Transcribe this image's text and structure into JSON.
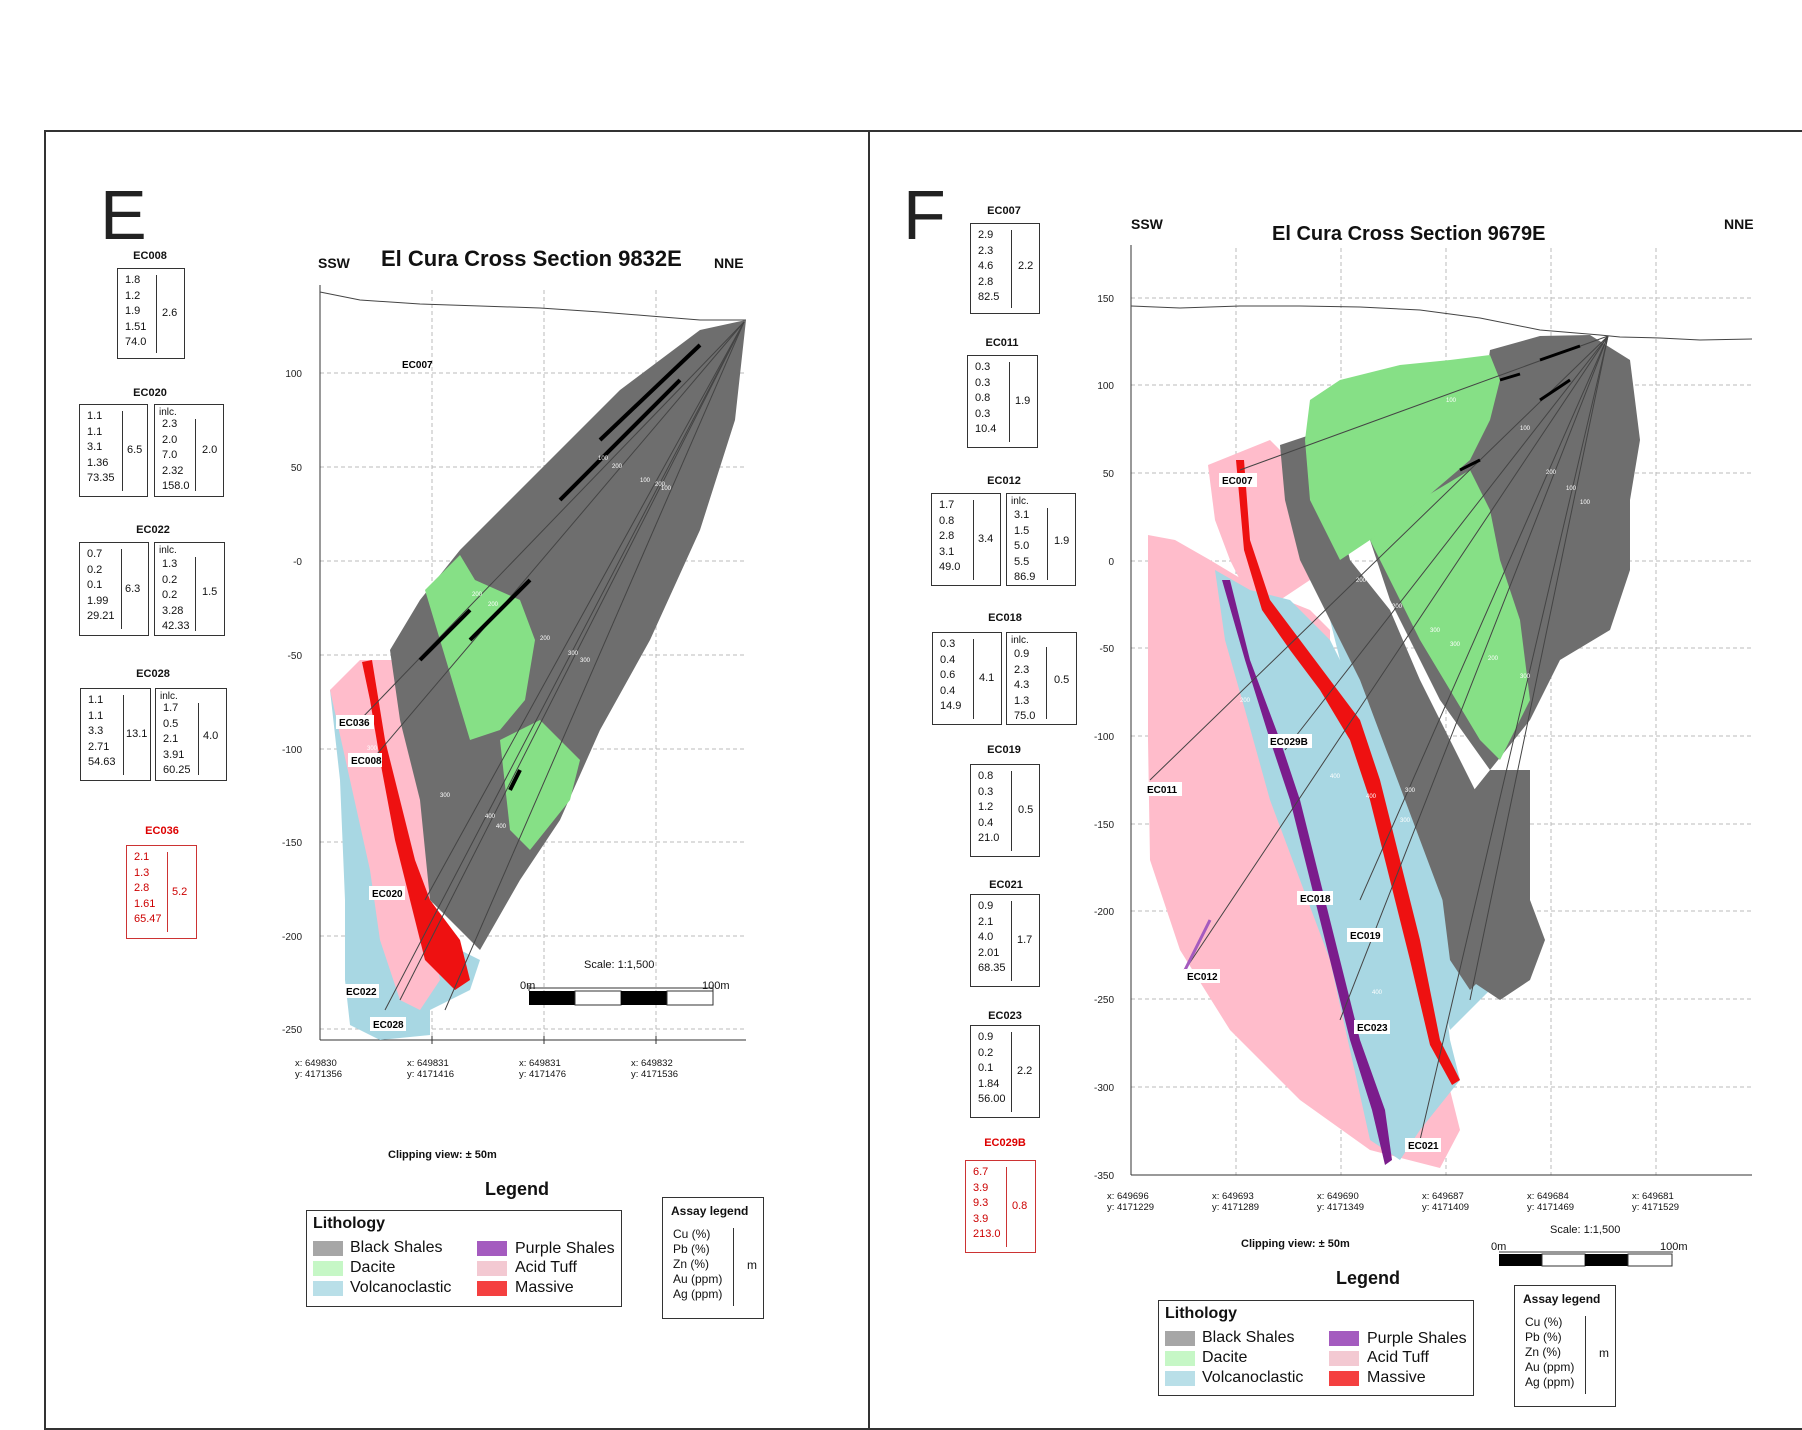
{
  "panels": {
    "E": {
      "letter": "E",
      "title": "El Cura Cross Section 9832E",
      "dir_left": "SSW",
      "dir_right": "NNE",
      "y_ticks": [
        "100",
        "50",
        "-0",
        "-50",
        "-100",
        "-150",
        "-200",
        "-250"
      ],
      "coords": [
        {
          "x": "x: 649830",
          "y": "y: 4171356"
        },
        {
          "x": "x: 649831",
          "y": "y: 4171416"
        },
        {
          "x": "x: 649831",
          "y": "y: 4171476"
        },
        {
          "x": "x: 649832",
          "y": "y: 4171536"
        }
      ],
      "hole_labels": [
        "EC007",
        "EC036",
        "EC008",
        "EC020",
        "EC022",
        "EC028"
      ],
      "depth_marks": [
        "100",
        "200",
        "100",
        "200",
        "100",
        "200",
        "200",
        "200",
        "300",
        "300",
        "300",
        "400",
        "400",
        "300"
      ],
      "scale": {
        "label": "Scale: 1:1,500",
        "start": "0m",
        "end": "100m"
      },
      "clipping": "Clipping view: ± 50m",
      "assays": [
        {
          "name": "EC008",
          "values": [
            "1.8",
            "1.2",
            "1.9",
            "1.51",
            "74.0"
          ],
          "length": "2.6"
        },
        {
          "name": "EC020",
          "values": [
            "1.1",
            "1.1",
            "3.1",
            "1.36",
            "73.35"
          ],
          "length": "6.5",
          "incl_label": "inlc.",
          "incl_values": [
            "2.3",
            "2.0",
            "7.0",
            "2.32",
            "158.0"
          ],
          "incl_length": "2.0"
        },
        {
          "name": "EC022",
          "values": [
            "0.7",
            "0.2",
            "0.1",
            "1.99",
            "29.21"
          ],
          "length": "6.3",
          "incl_label": "inlc.",
          "incl_values": [
            "1.3",
            "0.2",
            "0.2",
            "3.28",
            "42.33"
          ],
          "incl_length": "1.5"
        },
        {
          "name": "EC028",
          "values": [
            "1.1",
            "1.1",
            "3.3",
            "2.71",
            "54.63"
          ],
          "length": "13.1",
          "incl_label": "inlc.",
          "incl_values": [
            "1.7",
            "0.5",
            "2.1",
            "3.91",
            "60.25"
          ],
          "incl_length": "4.0"
        },
        {
          "name": "EC036",
          "values": [
            "2.1",
            "1.3",
            "2.8",
            "1.61",
            "65.47"
          ],
          "length": "5.2"
        }
      ]
    },
    "F": {
      "letter": "F",
      "title": "El Cura Cross Section 9679E",
      "dir_left": "SSW",
      "dir_right": "NNE",
      "y_ticks": [
        "150",
        "100",
        "50",
        "0",
        "-50",
        "-100",
        "-150",
        "-200",
        "-250",
        "-300",
        "-350"
      ],
      "coords": [
        {
          "x": "x: 649696",
          "y": "y: 4171229"
        },
        {
          "x": "x: 649693",
          "y": "y: 4171289"
        },
        {
          "x": "x: 649690",
          "y": "y: 4171349"
        },
        {
          "x": "x: 649687",
          "y": "y: 4171409"
        },
        {
          "x": "x: 649684",
          "y": "y: 4171469"
        },
        {
          "x": "x: 649681",
          "y": "y: 4171529"
        }
      ],
      "hole_labels": [
        "EC007",
        "EC011",
        "EC029B",
        "EC018",
        "EC019",
        "EC012",
        "EC023",
        "EC021"
      ],
      "depth_marks": [
        "100",
        "100",
        "200",
        "200",
        "300",
        "300",
        "200",
        "300",
        "400",
        "400",
        "300",
        "200",
        "100",
        "100",
        "200",
        "300",
        "400"
      ],
      "scale": {
        "label": "Scale: 1:1,500",
        "start": "0m",
        "end": "100m"
      },
      "clipping": "Clipping view: ± 50m",
      "assays": [
        {
          "name": "EC007",
          "values": [
            "2.9",
            "2.3",
            "4.6",
            "2.8",
            "82.5"
          ],
          "length": "2.2"
        },
        {
          "name": "EC011",
          "values": [
            "0.3",
            "0.3",
            "0.8",
            "0.3",
            "10.4"
          ],
          "length": "1.9"
        },
        {
          "name": "EC012",
          "values": [
            "1.7",
            "0.8",
            "2.8",
            "3.1",
            "49.0"
          ],
          "length": "3.4",
          "incl_label": "inlc.",
          "incl_values": [
            "3.1",
            "1.5",
            "5.0",
            "5.5",
            "86.9"
          ],
          "incl_length": "1.9"
        },
        {
          "name": "EC018",
          "values": [
            "0.3",
            "0.4",
            "0.6",
            "0.4",
            "14.9"
          ],
          "length": "4.1",
          "incl_label": "inlc.",
          "incl_values": [
            "0.9",
            "2.3",
            "4.3",
            "1.3",
            "75.0"
          ],
          "incl_length": "0.5"
        },
        {
          "name": "EC019",
          "values": [
            "0.8",
            "0.3",
            "1.2",
            "0.4",
            "21.0"
          ],
          "length": "0.5"
        },
        {
          "name": "EC021",
          "values": [
            "0.9",
            "2.1",
            "4.0",
            "2.01",
            "68.35"
          ],
          "length": "1.7"
        },
        {
          "name": "EC023",
          "values": [
            "0.9",
            "0.2",
            "0.1",
            "1.84",
            "56.00"
          ],
          "length": "2.2"
        },
        {
          "name": "EC029B",
          "values": [
            "6.7",
            "3.9",
            "9.3",
            "3.9",
            "213.0"
          ],
          "length": "0.8"
        }
      ]
    }
  },
  "legend": {
    "title": "Legend",
    "heading": "Lithology",
    "items": [
      {
        "label": "Black Shales",
        "color": "#a6a6a6"
      },
      {
        "label": "Dacite",
        "color": "#c6f7c6"
      },
      {
        "label": "Volcanoclastic",
        "color": "#b9dfe8"
      },
      {
        "label": "Purple Shales",
        "color": "#a45bbf"
      },
      {
        "label": "Acid Tuff",
        "color": "#f3c9d2"
      },
      {
        "label": "Massive",
        "color": "#f44040"
      }
    ]
  },
  "assay_legend": {
    "title": "Assay legend",
    "lines": [
      "Cu (%)",
      "Pb (%)",
      "Zn (%)",
      "Au (ppm)",
      "Ag (ppm)"
    ],
    "unit": "m"
  },
  "colors": {
    "black_shales": "#6e6e6e",
    "dacite": "#86e086",
    "volcanoclastic": "#a8d7e3",
    "acid_tuff": "#ffbccb",
    "massive": "#ee1111",
    "purple_shales": "#7b1c8c",
    "highlight_red": "#cc0000"
  }
}
